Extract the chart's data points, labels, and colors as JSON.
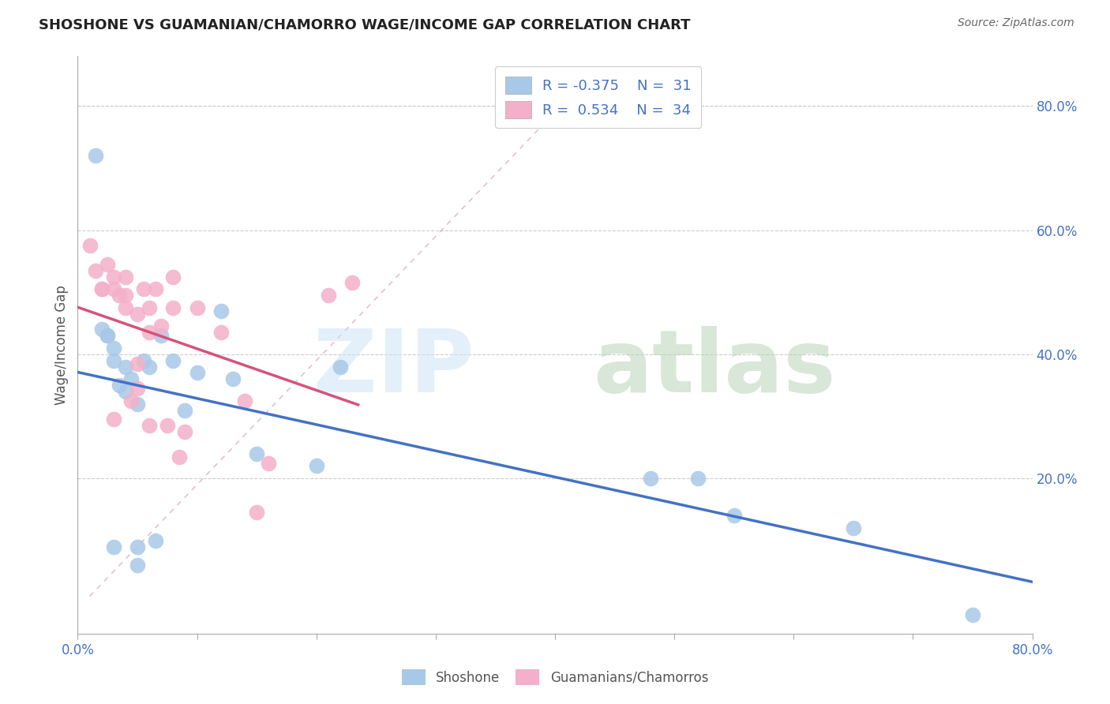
{
  "title": "SHOSHONE VS GUAMANIAN/CHAMORRO WAGE/INCOME GAP CORRELATION CHART",
  "source": "Source: ZipAtlas.com",
  "ylabel": "Wage/Income Gap",
  "xlim": [
    0.0,
    0.8
  ],
  "ylim": [
    -0.05,
    0.88
  ],
  "color_shoshone": "#a8c8e8",
  "color_guamanian": "#f4b0c8",
  "color_shoshone_line": "#4472c4",
  "color_guamanian_line": "#d4547a",
  "color_diagonal": "#d8a0b0",
  "shoshone_x": [
    0.015,
    0.02,
    0.025,
    0.03,
    0.03,
    0.035,
    0.04,
    0.04,
    0.045,
    0.05,
    0.05,
    0.055,
    0.06,
    0.065,
    0.07,
    0.08,
    0.09,
    0.1,
    0.12,
    0.13,
    0.15,
    0.2,
    0.22,
    0.48,
    0.52,
    0.55,
    0.65,
    0.75,
    0.025,
    0.03,
    0.05
  ],
  "shoshone_y": [
    0.72,
    0.44,
    0.43,
    0.41,
    0.39,
    0.35,
    0.38,
    0.34,
    0.36,
    0.32,
    0.09,
    0.39,
    0.38,
    0.1,
    0.43,
    0.39,
    0.31,
    0.37,
    0.47,
    0.36,
    0.24,
    0.22,
    0.38,
    0.2,
    0.2,
    0.14,
    0.12,
    -0.02,
    0.43,
    0.09,
    0.06
  ],
  "guamanian_x": [
    0.01,
    0.015,
    0.02,
    0.02,
    0.025,
    0.03,
    0.03,
    0.03,
    0.035,
    0.04,
    0.04,
    0.04,
    0.045,
    0.05,
    0.05,
    0.05,
    0.055,
    0.06,
    0.06,
    0.06,
    0.065,
    0.07,
    0.075,
    0.08,
    0.08,
    0.085,
    0.09,
    0.1,
    0.12,
    0.14,
    0.15,
    0.16,
    0.21,
    0.23
  ],
  "guamanian_y": [
    0.575,
    0.535,
    0.505,
    0.505,
    0.545,
    0.525,
    0.505,
    0.295,
    0.495,
    0.525,
    0.495,
    0.475,
    0.325,
    0.465,
    0.385,
    0.345,
    0.505,
    0.475,
    0.435,
    0.285,
    0.505,
    0.445,
    0.285,
    0.525,
    0.475,
    0.235,
    0.275,
    0.475,
    0.435,
    0.325,
    0.145,
    0.225,
    0.495,
    0.515
  ]
}
